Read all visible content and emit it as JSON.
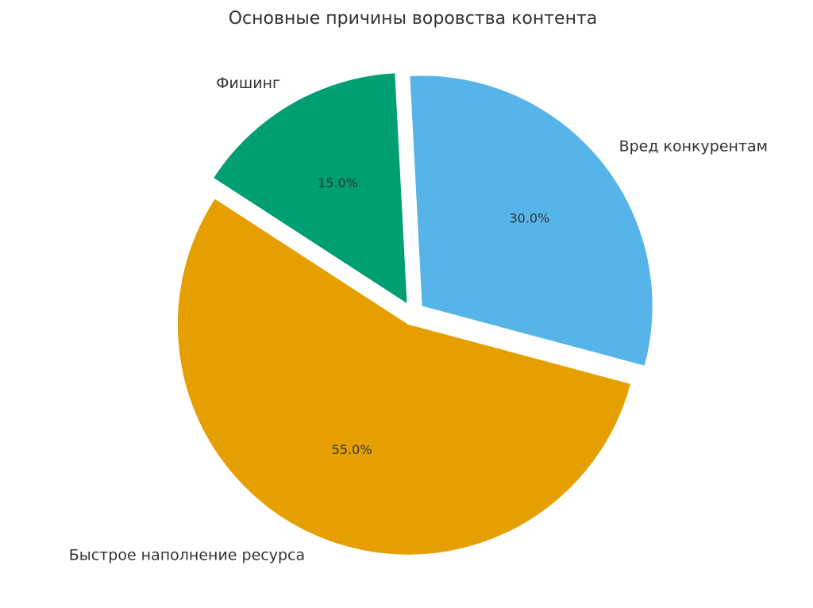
{
  "chart_data": {
    "type": "pie",
    "title": "Основные причины воровства контента",
    "categories": [
      "Быстрое наполнение ресурса",
      "Вред конкурентам",
      "Фишинг"
    ],
    "values": [
      55,
      30,
      15
    ],
    "value_labels": [
      "55.0%",
      "30.0%",
      "15.0%"
    ],
    "colors": [
      "#E69F00",
      "#56B4E9",
      "#009E73"
    ]
  }
}
